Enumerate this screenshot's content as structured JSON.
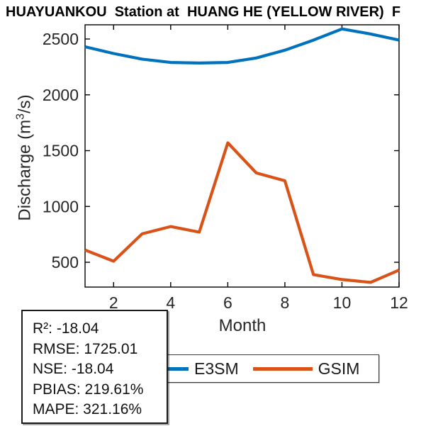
{
  "title": "HUAYUANKOU  Station at  HUANG HE (YELLOW RIVER)  F",
  "chart_data": {
    "type": "line",
    "x": [
      1,
      2,
      3,
      4,
      5,
      6,
      7,
      8,
      9,
      10,
      11,
      12
    ],
    "series": [
      {
        "name": "E3SM",
        "color": "#0072BD",
        "values": [
          2430,
          2370,
          2320,
          2290,
          2285,
          2290,
          2330,
          2400,
          2490,
          2590,
          2545,
          2490
        ]
      },
      {
        "name": "GSIM",
        "color": "#D95319",
        "values": [
          610,
          510,
          755,
          820,
          770,
          1570,
          1300,
          1230,
          390,
          345,
          320,
          430
        ]
      }
    ],
    "title": "HUAYUANKOU  Station at  HUANG HE (YELLOW RIVER)  F",
    "xlabel": "Month",
    "ylabel": "Discharge (m³/s)",
    "xlim": [
      1,
      12
    ],
    "ylim": [
      278,
      2627
    ],
    "xticks": [
      2,
      4,
      6,
      8,
      10,
      12
    ],
    "yticks": [
      500,
      1000,
      1500,
      2000,
      2500
    ],
    "grid": false,
    "legend_position": "below-axis-right"
  },
  "ylabel_parts": {
    "prefix": "Discharge (m",
    "sup": "3",
    "suffix": "/s)"
  },
  "legend": {
    "items": [
      {
        "label": "E3SM",
        "color": "#0072BD"
      },
      {
        "label": "GSIM",
        "color": "#D95319"
      }
    ]
  },
  "stats_box": {
    "lines": [
      "R²: -18.04",
      "RMSE: 1725.01",
      "NSE: -18.04",
      "PBIAS: 219.61%",
      "MAPE: 321.16%"
    ]
  }
}
